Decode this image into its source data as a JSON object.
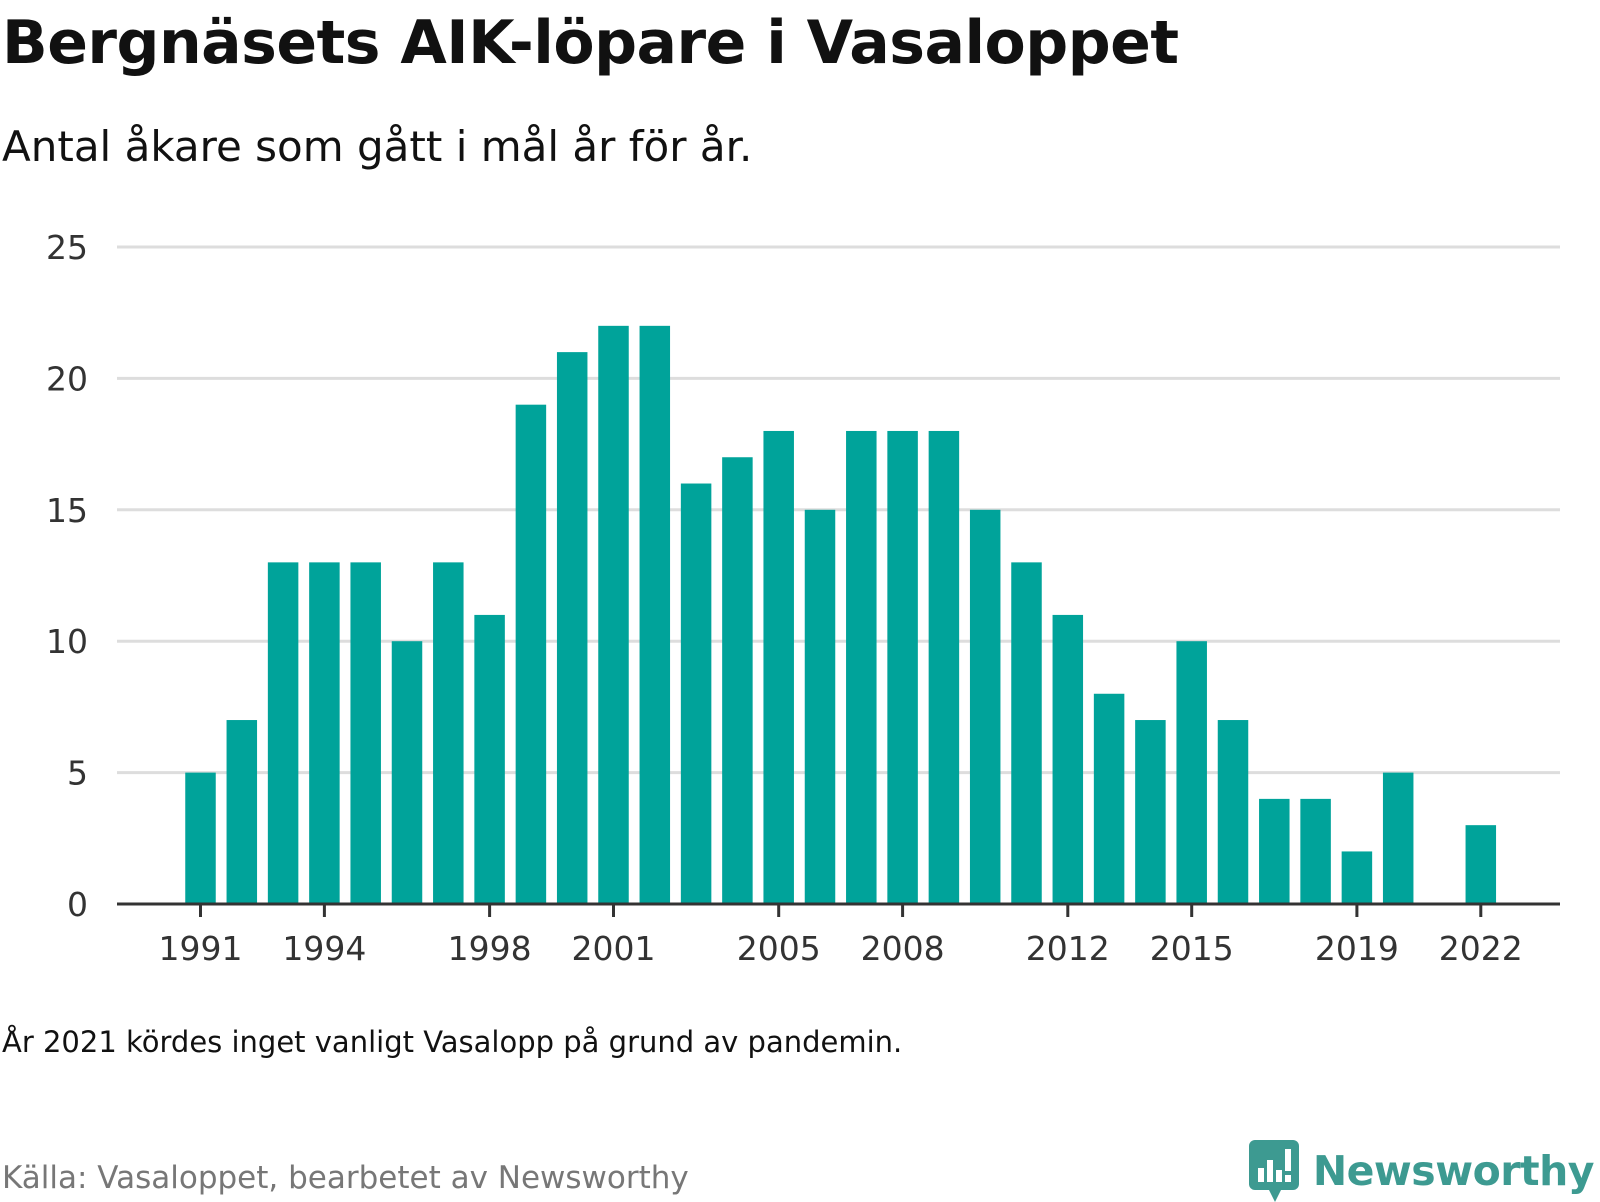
{
  "header": {
    "title": "Bergnäsets AIK-löpare i Vasaloppet",
    "subtitle": "Antal åkare som gått i mål år för år."
  },
  "footer": {
    "note": "År 2021 kördes inget vanligt Vasalopp på grund av pandemin.",
    "source": "Källa: Vasaloppet, bearbetet av Newsworthy",
    "brand": "Newsworthy",
    "brand_icon": "bar-chart-speech-bubble-icon"
  },
  "colors": {
    "bar": "#00a39a",
    "grid": "#dddddd",
    "axis": "#333333",
    "brand": "#3d9a91"
  },
  "chart_data": {
    "type": "bar",
    "x": [
      1991,
      1992,
      1993,
      1994,
      1995,
      1996,
      1997,
      1998,
      1999,
      2000,
      2001,
      2002,
      2003,
      2004,
      2005,
      2006,
      2007,
      2008,
      2009,
      2010,
      2011,
      2012,
      2013,
      2014,
      2015,
      2016,
      2017,
      2018,
      2019,
      2020,
      2021,
      2022
    ],
    "values": [
      5,
      7,
      13,
      13,
      13,
      10,
      13,
      11,
      19,
      21,
      22,
      22,
      16,
      17,
      18,
      15,
      18,
      18,
      18,
      15,
      13,
      11,
      8,
      7,
      10,
      7,
      4,
      4,
      2,
      5,
      null,
      3
    ],
    "xticks": [
      1991,
      1994,
      1998,
      2001,
      2005,
      2008,
      2012,
      2015,
      2019,
      2022
    ],
    "yticks": [
      0,
      5,
      10,
      15,
      20,
      25
    ],
    "ylim": [
      0,
      25
    ],
    "grid": true,
    "legend": "none"
  }
}
